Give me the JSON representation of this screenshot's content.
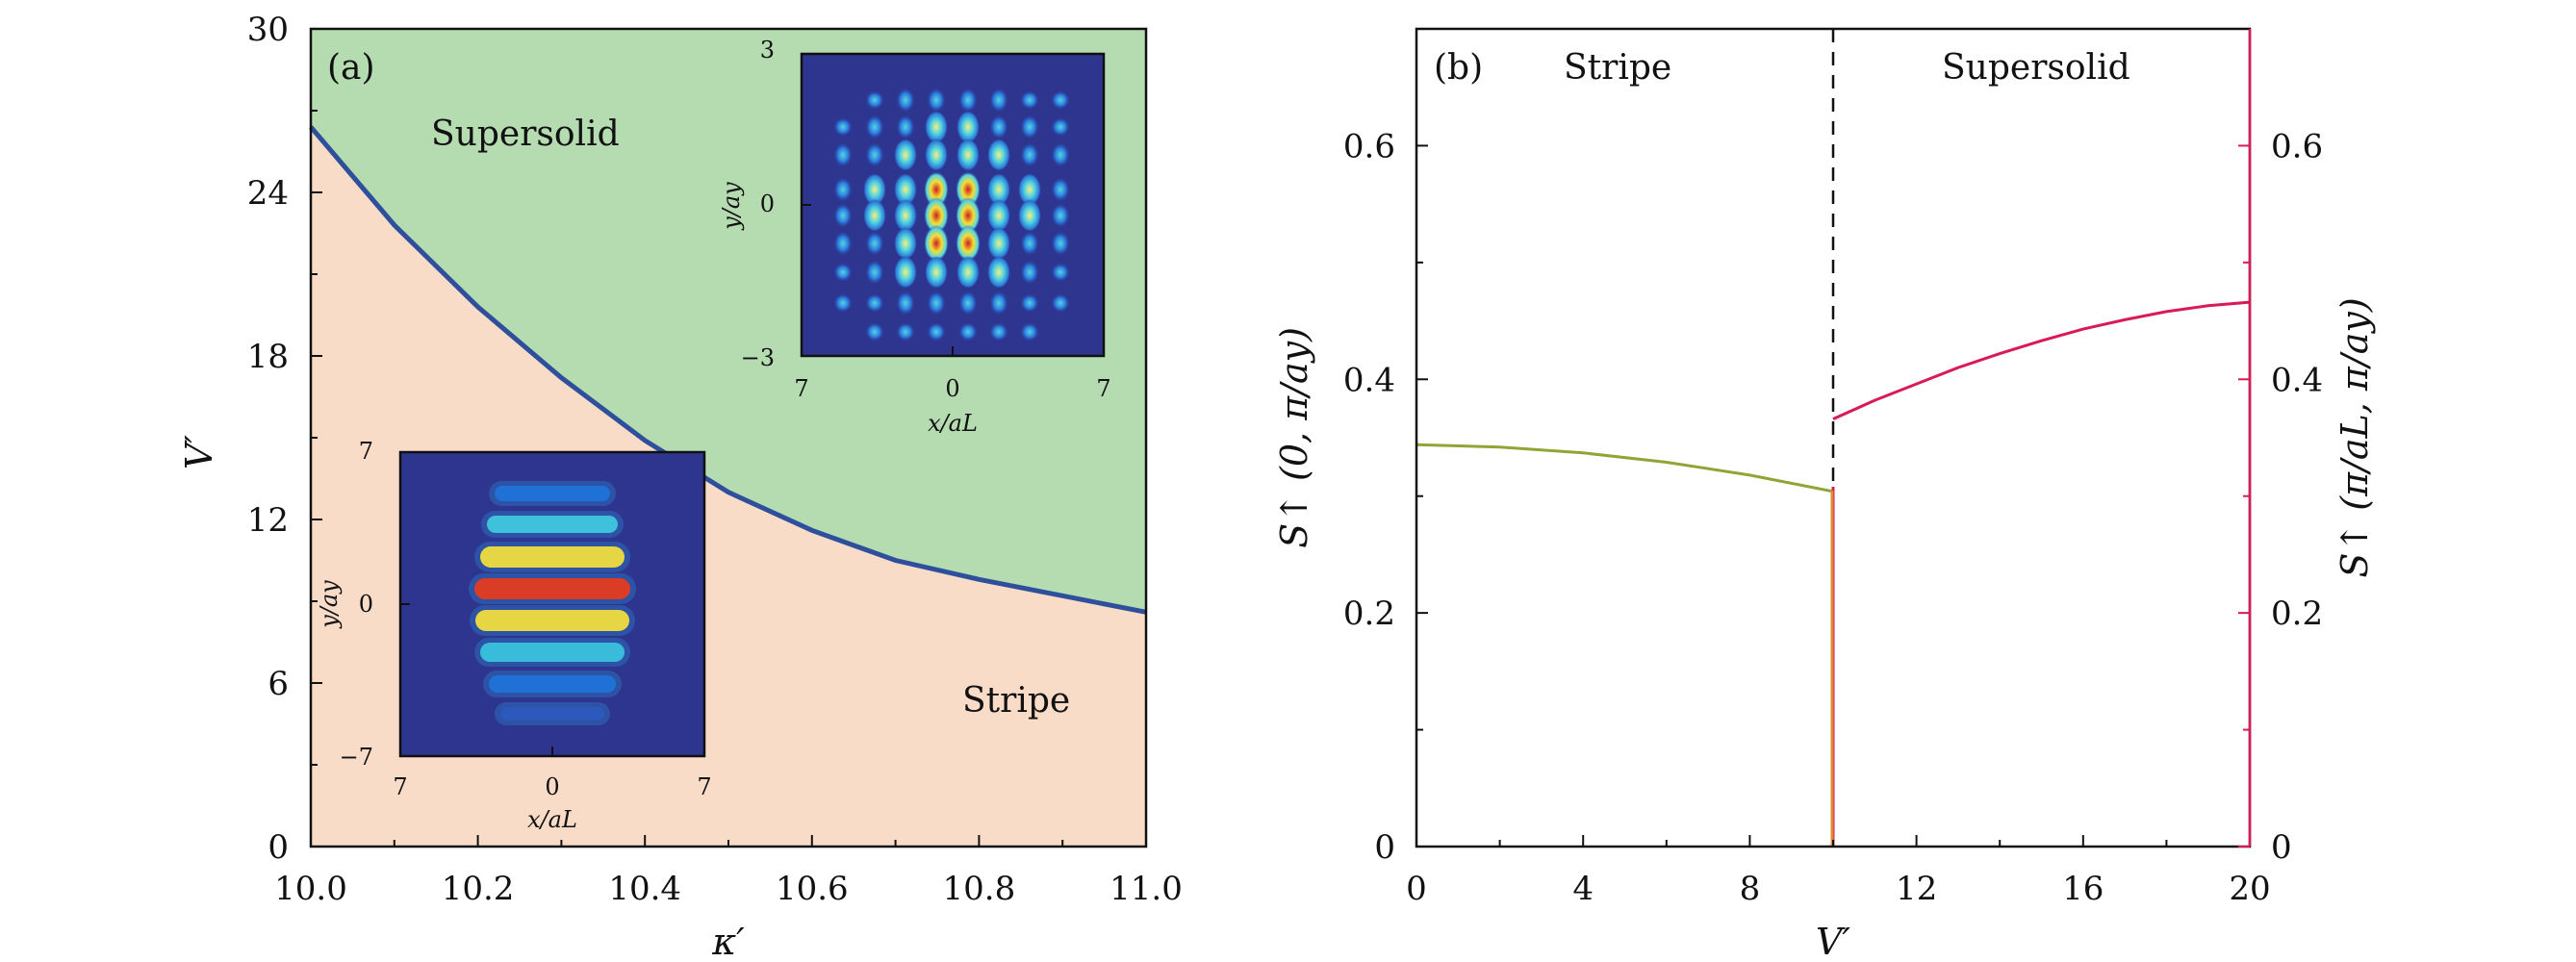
{
  "chart_data": [
    {
      "panel": "(a)",
      "type": "area",
      "xlabel": "κ′",
      "ylabel": "V′",
      "xlim": [
        10.0,
        11.0
      ],
      "ylim": [
        0,
        30
      ],
      "xticks": [
        "10.0",
        "10.2",
        "10.4",
        "10.6",
        "10.8",
        "11.0"
      ],
      "xtick_values": [
        10.0,
        10.2,
        10.4,
        10.6,
        10.8,
        11.0
      ],
      "yticks": [
        "0",
        "6",
        "12",
        "18",
        "24",
        "30"
      ],
      "ytick_values": [
        0,
        6,
        12,
        18,
        24,
        30
      ],
      "boundary": {
        "x": [
          10.0,
          10.1,
          10.2,
          10.3,
          10.4,
          10.5,
          10.6,
          10.7,
          10.8,
          10.9,
          11.0
        ],
        "y": [
          26.4,
          22.8,
          19.8,
          17.2,
          14.9,
          13.0,
          11.6,
          10.5,
          9.8,
          9.2,
          8.6
        ]
      },
      "regions": {
        "upper": "Supersolid",
        "lower": "Stripe"
      },
      "colors": {
        "upper_fill": "#b5dbb0",
        "lower_fill": "#f8dcc8",
        "boundary": "#2e4f9c"
      },
      "insets": [
        {
          "name": "supersolid-density",
          "xlabel": "x/aL",
          "ylabel": "y/ay",
          "xticks": [
            "7",
            "0",
            "7"
          ],
          "yticks": [
            "3",
            "0",
            "−3"
          ]
        },
        {
          "name": "stripe-density",
          "xlabel": "x/aL",
          "ylabel": "y/ay",
          "xticks": [
            "7",
            "0",
            "7"
          ],
          "yticks": [
            "7",
            "0",
            "−7"
          ]
        }
      ]
    },
    {
      "panel": "(b)",
      "type": "line",
      "xlabel": "V′",
      "ylabel_left": "S↑ (0, π/ay)",
      "ylabel_right": "S↑ (π/aL, π/ay)",
      "xlim": [
        0,
        20
      ],
      "ylim": [
        0,
        0.7
      ],
      "xticks": [
        "0",
        "4",
        "8",
        "12",
        "16",
        "20"
      ],
      "xtick_values": [
        0,
        4,
        8,
        12,
        16,
        20
      ],
      "yticks_left": [
        "0",
        "0.2",
        "0.4",
        "0.6"
      ],
      "yticks_right": [
        "0",
        "0.2",
        "0.4",
        "0.6"
      ],
      "ytick_values": [
        0,
        0.2,
        0.4,
        0.6
      ],
      "transition_x": 10,
      "regions": {
        "left": "Stripe",
        "right": "Supersolid"
      },
      "series": [
        {
          "x": [
            0,
            2,
            4,
            6,
            8,
            10
          ],
          "y": [
            0.344,
            0.342,
            0.337,
            0.329,
            0.318,
            0.304
          ],
          "color": "#8fa636"
        },
        {
          "x": [
            10,
            11,
            12,
            13,
            14,
            15,
            16,
            17,
            18,
            19,
            20
          ],
          "y": [
            0.366,
            0.382,
            0.396,
            0.41,
            0.422,
            0.433,
            0.443,
            0.451,
            0.458,
            0.463,
            0.466
          ],
          "color": "#d81b55"
        }
      ],
      "colors": {
        "left_axis": "#8fa636",
        "right_axis": "#d81b55"
      }
    }
  ]
}
